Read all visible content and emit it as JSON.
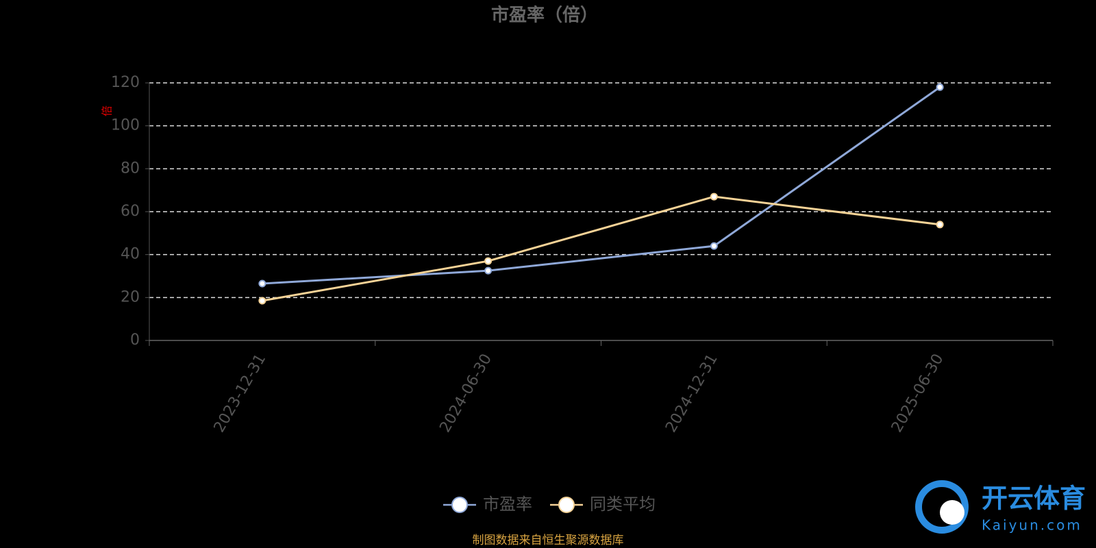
{
  "chart_data": {
    "type": "line",
    "title": "市盈率（倍）",
    "y_label": "倍",
    "categories": [
      "2023-12-31",
      "2024-06-30",
      "2024-12-31",
      "2025-06-30"
    ],
    "series": [
      {
        "name": "市盈率",
        "color": "#8fa8d8",
        "values": [
          26.5,
          32.5,
          44,
          118
        ]
      },
      {
        "name": "同类平均",
        "color": "#f5d296",
        "values": [
          18.5,
          37,
          67,
          54
        ]
      }
    ],
    "ylim": [
      0,
      120
    ],
    "yticks": [
      0,
      20,
      40,
      60,
      80,
      100,
      120
    ],
    "grid": true,
    "source": "制图数据来自恒生聚源数据库"
  },
  "watermark": {
    "brand": "开云体育",
    "site": "Kaiyun.com"
  }
}
